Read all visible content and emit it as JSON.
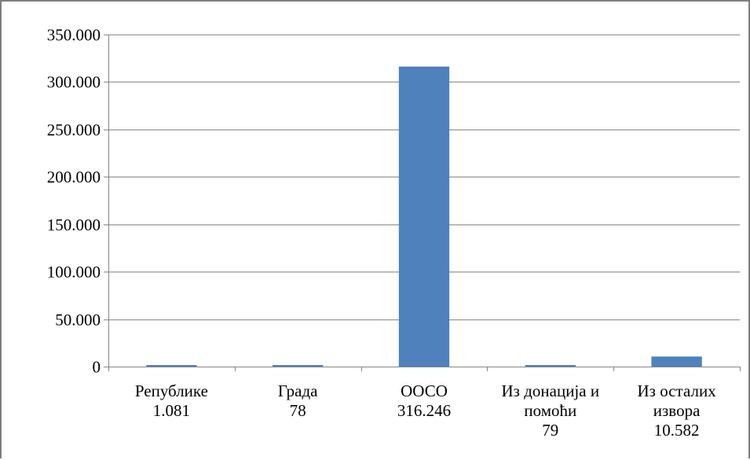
{
  "chart_data": {
    "type": "bar",
    "categories": [
      [
        "Републике",
        "1.081"
      ],
      [
        "Града",
        "78"
      ],
      [
        "ООСО",
        "316.246"
      ],
      [
        "Из донација и",
        "помоћи",
        "79"
      ],
      [
        "Из осталих",
        "извора",
        "10.582"
      ]
    ],
    "values": [
      1081,
      78,
      316246,
      79,
      10582
    ],
    "ylim": [
      0,
      350000
    ],
    "yticks": [
      0,
      50000,
      100000,
      150000,
      200000,
      250000,
      300000,
      350000
    ],
    "ytick_labels": [
      "0",
      "50.000",
      "100.000",
      "150.000",
      "200.000",
      "250.000",
      "300.000",
      "350.000"
    ],
    "grid": true,
    "title": "",
    "xlabel": "",
    "ylabel": "",
    "colors": {
      "bar": "#4f81bd",
      "grid": "#868686",
      "axis": "#868686",
      "frame": "#7f7f7f"
    }
  }
}
